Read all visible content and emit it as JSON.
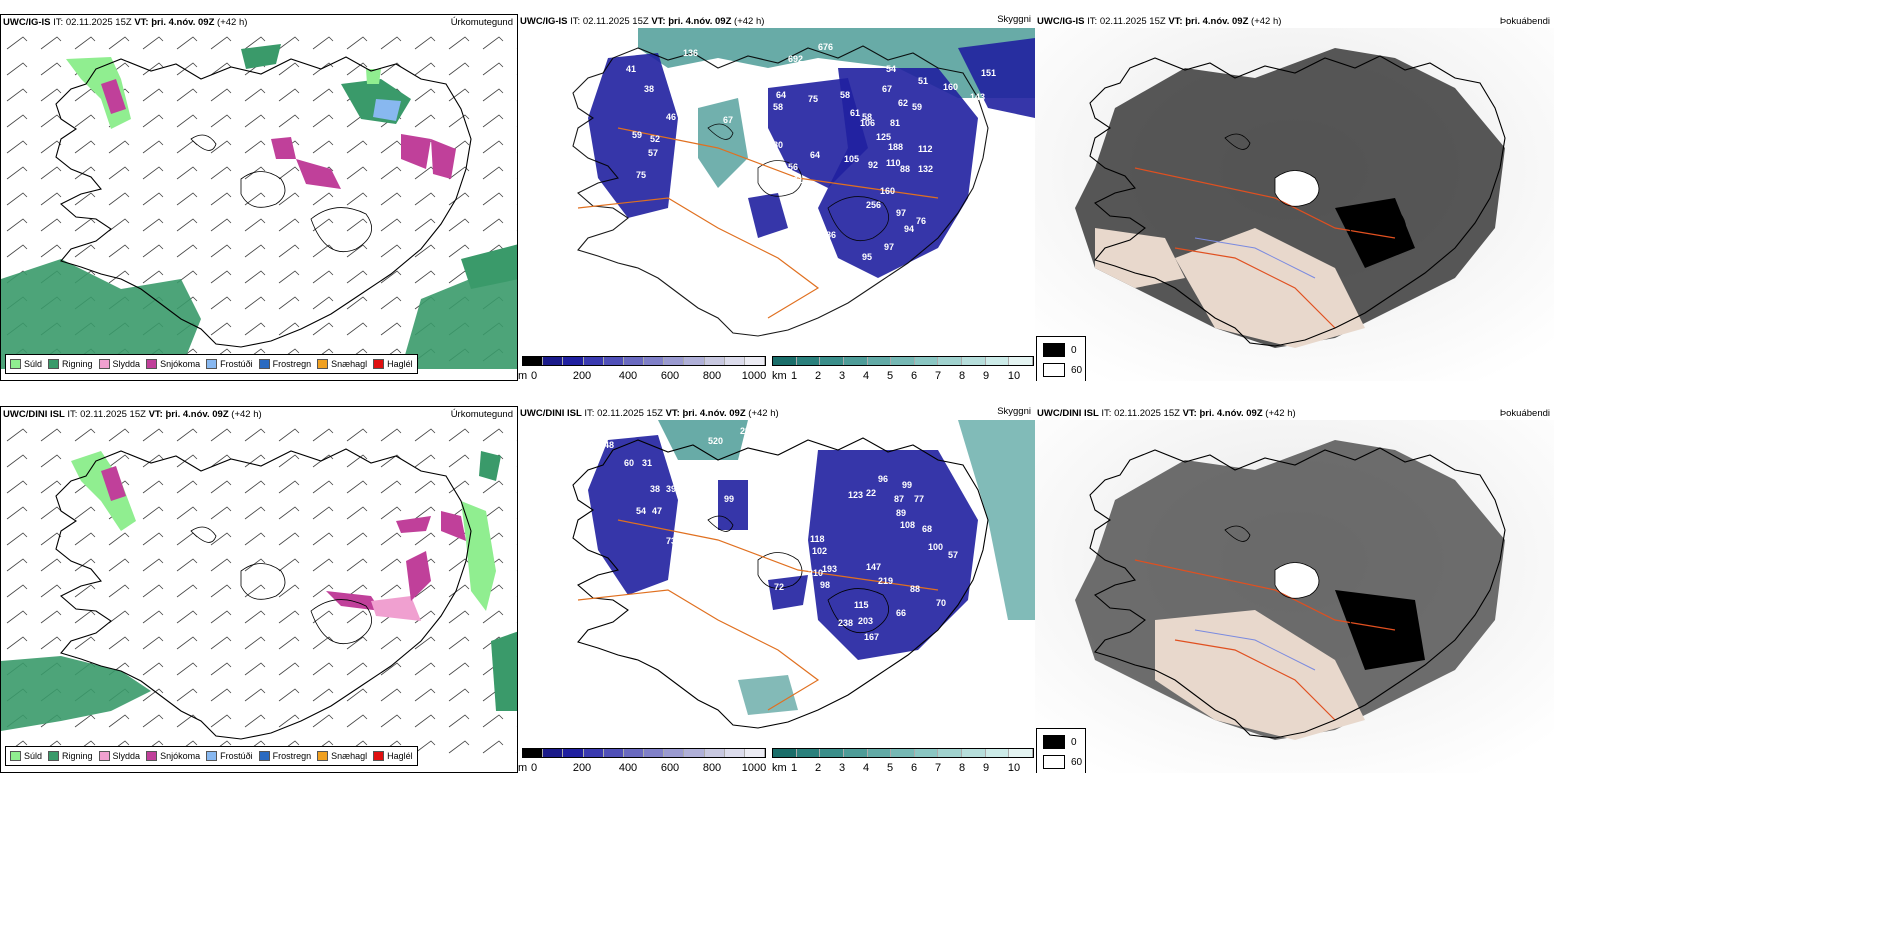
{
  "rows": [
    {
      "model": "UWC/IG-IS",
      "it_label": "IT:",
      "it_value": "02.11.2025 15Z",
      "vt_label": "VT:",
      "vt_value": "þri. 4.nóv. 09Z",
      "lead": "(+42 h)",
      "titles": {
        "precip": "Úrkomutegund",
        "vis": "Skyggni",
        "fog": "Þokuábendi"
      },
      "vis_numbers": [
        "136",
        "676",
        "692",
        "215",
        "41",
        "38",
        "46",
        "59",
        "52",
        "57",
        "75",
        "50",
        "84",
        "67",
        "64",
        "58",
        "75",
        "80",
        "56",
        "61",
        "64",
        "58",
        "61",
        "58",
        "54",
        "67",
        "62",
        "59",
        "51",
        "160",
        "151",
        "143",
        "99",
        "106",
        "81",
        "105",
        "92",
        "125",
        "188",
        "112",
        "110",
        "88",
        "132",
        "160",
        "97",
        "94",
        "76",
        "89",
        "86",
        "95",
        "97",
        "99",
        "256",
        "156"
      ]
    },
    {
      "model": "UWC/DINI ISL",
      "it_label": "IT:",
      "it_value": "02.11.2025 15Z",
      "vt_label": "VT:",
      "vt_value": "þri. 4.nóv. 09Z",
      "lead": "(+42 h)",
      "titles": {
        "precip": "Úrkomutegund",
        "vis": "Skyggni",
        "fog": "Þokuábendi"
      },
      "vis_numbers": [
        "291",
        "520",
        "48",
        "60",
        "31",
        "38",
        "39",
        "54",
        "47",
        "73",
        "60",
        "100",
        "99",
        "96",
        "123",
        "22",
        "87",
        "77",
        "99",
        "89",
        "108",
        "68",
        "118",
        "102",
        "210",
        "193",
        "219",
        "98",
        "115",
        "203",
        "238",
        "167",
        "66",
        "88",
        "70",
        "57",
        "100",
        "72",
        "147"
      ]
    }
  ],
  "precip_legend": [
    {
      "label": "Súld",
      "color": "#90ee90"
    },
    {
      "label": "Rigning",
      "color": "#3a9a6a"
    },
    {
      "label": "Slydda",
      "color": "#f0a0d0"
    },
    {
      "label": "Snjókoma",
      "color": "#c0409a"
    },
    {
      "label": "Frostúði",
      "color": "#88b8f0"
    },
    {
      "label": "Frostregn",
      "color": "#2a6ac0"
    },
    {
      "label": "Snæhagl",
      "color": "#f0a020"
    },
    {
      "label": "Haglél",
      "color": "#e01010"
    }
  ],
  "cloud_base_bar": {
    "unit": "m",
    "ticks": [
      "0",
      "200",
      "400",
      "600",
      "800",
      "1000"
    ],
    "colors": [
      "#000000",
      "#1a1a8a",
      "#2020a0",
      "#3a3ab0",
      "#5050b8",
      "#6a6ac0",
      "#8080c8",
      "#9a9ad0",
      "#b0b0d8",
      "#c8c8e0",
      "#dcdcec",
      "#ececf4"
    ]
  },
  "vis_bar": {
    "unit": "km",
    "ticks": [
      "1",
      "2",
      "3",
      "4",
      "5",
      "6",
      "7",
      "8",
      "9",
      "10"
    ],
    "colors": [
      "#1a6e6a",
      "#2a807c",
      "#3a8e8a",
      "#4e9c98",
      "#62aaa6",
      "#76b8b4",
      "#8ac6c2",
      "#a0d2ce",
      "#b6dedb",
      "#ccebe8",
      "#e4f4f2"
    ]
  },
  "fog_legend": {
    "black": "0",
    "white": "60"
  }
}
